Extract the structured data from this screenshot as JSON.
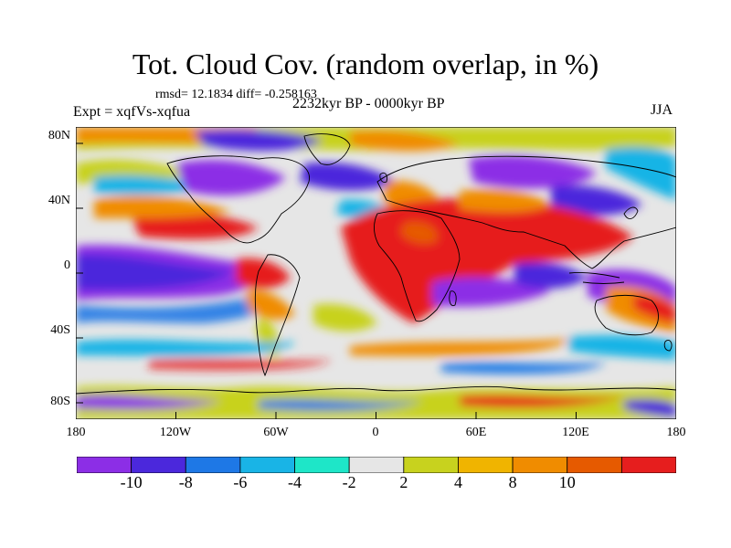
{
  "title": "Tot. Cloud Cov. (random overlap, in %)",
  "stats_text": "rmsd= 12.1834 diff= -0.258163",
  "experiment_label": "Expt = xqfVs-xqfua",
  "period_label": "2232kyr BP - 0000kyr BP",
  "season_label": "JJA",
  "y_ticks": [
    "80N",
    "40N",
    "0",
    "40S",
    "80S"
  ],
  "x_ticks": [
    "180",
    "120W",
    "60W",
    "0",
    "60E",
    "120E",
    "180"
  ],
  "colorbar": {
    "labels": [
      "-10",
      "-8",
      "-6",
      "-4",
      "-2",
      "2",
      "4",
      "8",
      "10"
    ],
    "colors": [
      "#8c2ee6",
      "#4b28dc",
      "#1e78e6",
      "#19b4e6",
      "#1ee6c8",
      "#e6e6e6",
      "#c8d21e",
      "#f0b400",
      "#f08c00",
      "#e65a00",
      "#e61e1e"
    ]
  }
}
